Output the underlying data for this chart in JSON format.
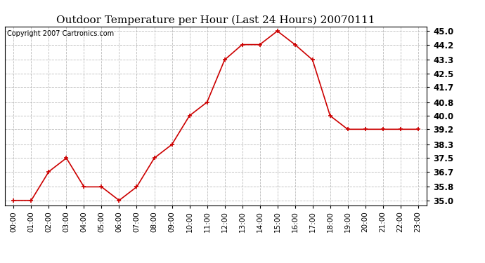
{
  "title": "Outdoor Temperature per Hour (Last 24 Hours) 20070111",
  "copyright_text": "Copyright 2007 Cartronics.com",
  "hours": [
    "00:00",
    "01:00",
    "02:00",
    "03:00",
    "04:00",
    "05:00",
    "06:00",
    "07:00",
    "08:00",
    "09:00",
    "10:00",
    "11:00",
    "12:00",
    "13:00",
    "14:00",
    "15:00",
    "16:00",
    "17:00",
    "18:00",
    "19:00",
    "20:00",
    "21:00",
    "22:00",
    "23:00"
  ],
  "temperatures": [
    35.0,
    35.0,
    36.7,
    37.5,
    35.8,
    35.8,
    35.0,
    35.8,
    37.5,
    38.3,
    40.0,
    40.8,
    43.3,
    44.2,
    44.2,
    45.0,
    44.2,
    43.3,
    40.0,
    39.2,
    39.2,
    39.2,
    39.2,
    39.2
  ],
  "y_ticks": [
    35.0,
    35.8,
    36.7,
    37.5,
    38.3,
    39.2,
    40.0,
    40.8,
    41.7,
    42.5,
    43.3,
    44.2,
    45.0
  ],
  "ylim": [
    34.72,
    45.28
  ],
  "line_color": "#cc0000",
  "marker_color": "#cc0000",
  "background_color": "#ffffff",
  "grid_color": "#bbbbbb",
  "title_fontsize": 11,
  "copyright_fontsize": 7,
  "tick_fontsize": 7.5,
  "ytick_fontsize": 8.5
}
